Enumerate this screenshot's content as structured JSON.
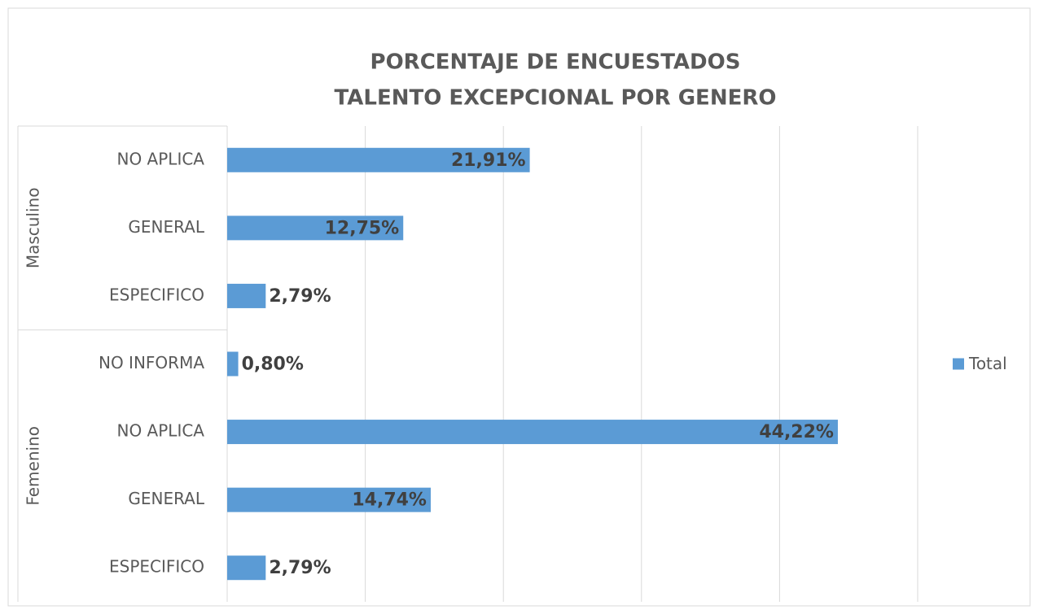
{
  "chart_data": {
    "type": "bar",
    "orientation": "horizontal",
    "title": [
      "PORCENTAJE DE ENCUESTADOS",
      "TALENTO EXCEPCIONAL POR  GENERO"
    ],
    "groups": [
      {
        "name": "Masculino",
        "categories": [
          "NO APLICA",
          "GENERAL",
          "ESPECIFICO"
        ],
        "values": [
          21.91,
          12.75,
          2.79
        ],
        "value_labels": [
          "21,91%",
          "12,75%",
          "2,79%"
        ]
      },
      {
        "name": "Femenino",
        "categories": [
          "NO INFORMA",
          "NO APLICA",
          "GENERAL",
          "ESPECIFICO"
        ],
        "values": [
          0.8,
          44.22,
          14.74,
          2.79
        ],
        "value_labels": [
          "0,80%",
          "44,22%",
          "14,74%",
          "2,79%"
        ]
      }
    ],
    "series": [
      {
        "name": "Total",
        "color": "#5b9bd5"
      }
    ],
    "xlim": [
      0,
      50
    ],
    "xticks": [
      0,
      10,
      20,
      30,
      40,
      50
    ],
    "grid": true,
    "legend": "right"
  }
}
